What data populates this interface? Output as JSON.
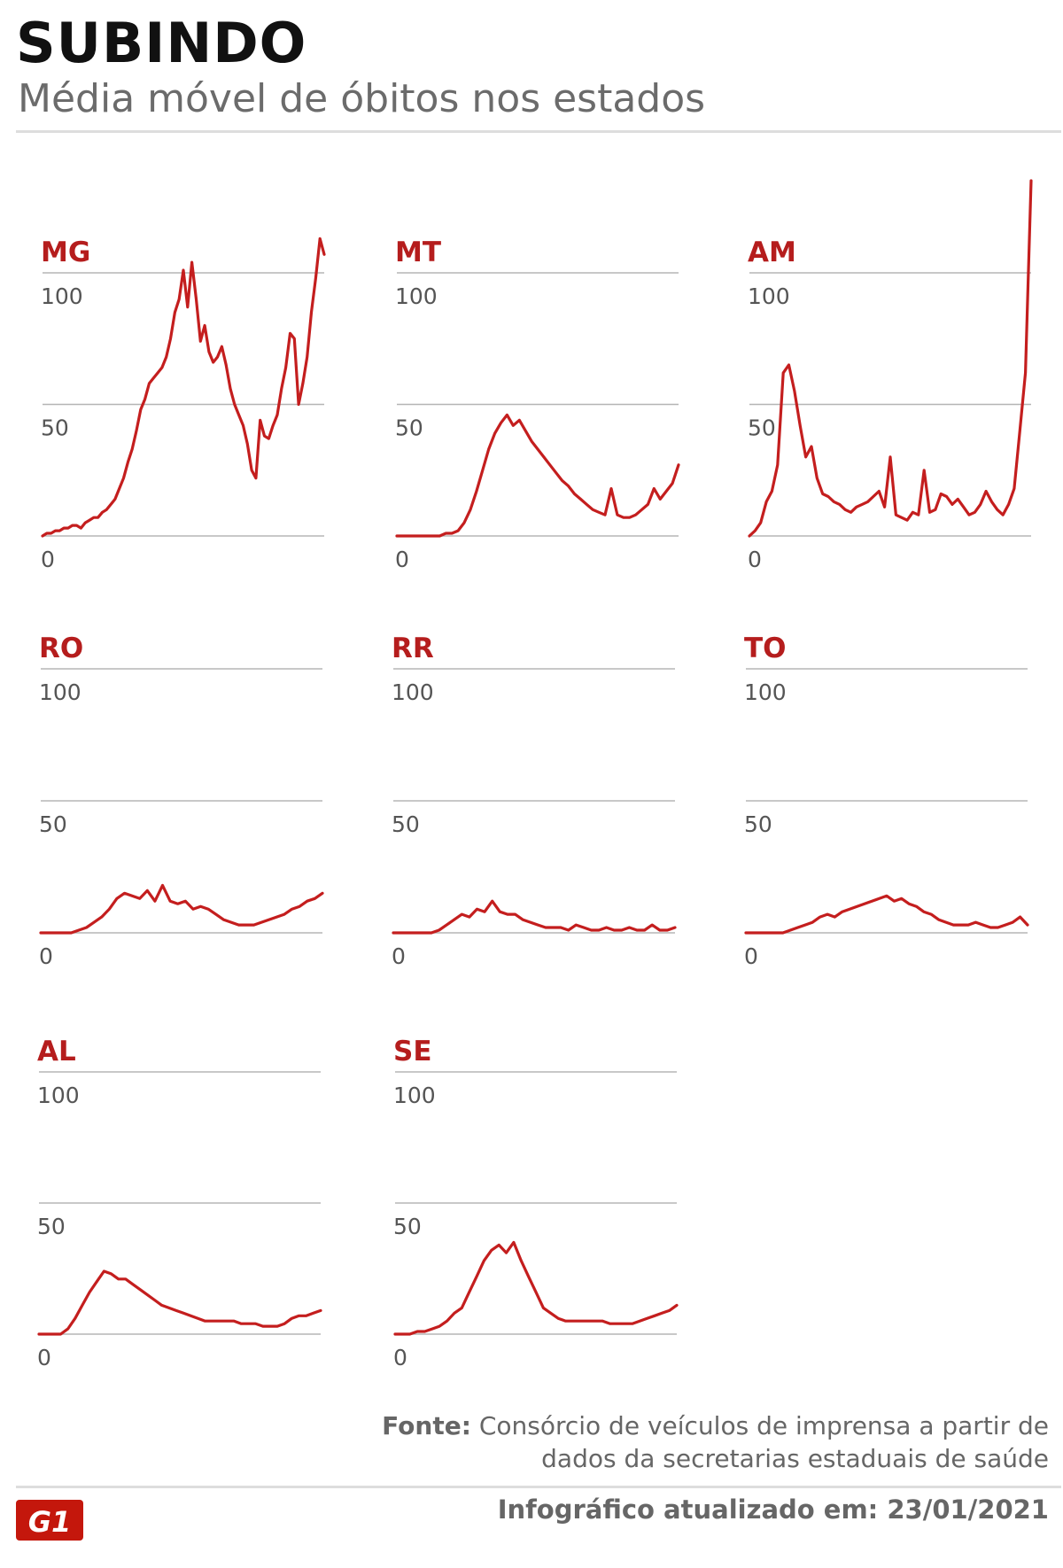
{
  "header": {
    "title": "SUBINDO",
    "subtitle": "Média móvel de óbitos nos estados"
  },
  "footer": {
    "source_label": "Fonte:",
    "source_text": "Consórcio de veículos de imprensa a partir de dados da secretarias estaduais de saúde",
    "updated": "Infográfico atualizado em: 23/01/2021",
    "logo_text": "G1"
  },
  "colors": {
    "series": "#c41e1e",
    "label": "#b51d1d",
    "grid": "#b5b5b5"
  },
  "chart_data": [
    {
      "type": "line",
      "title": "MG",
      "yticks": [
        0,
        50,
        100
      ],
      "ylim": [
        0,
        100
      ],
      "values": [
        0,
        1,
        1,
        2,
        2,
        3,
        3,
        4,
        4,
        3,
        5,
        6,
        7,
        7,
        9,
        10,
        12,
        14,
        18,
        22,
        28,
        33,
        40,
        48,
        52,
        58,
        60,
        62,
        64,
        68,
        75,
        85,
        90,
        101,
        87,
        104,
        90,
        74,
        80,
        70,
        66,
        68,
        72,
        65,
        56,
        50,
        46,
        42,
        35,
        25,
        22,
        44,
        38,
        37,
        42,
        46,
        56,
        64,
        77,
        75,
        50,
        58,
        68,
        85,
        98,
        113,
        107
      ],
      "xlabel": "",
      "ylabel": "",
      "grid": true
    },
    {
      "type": "line",
      "title": "MT",
      "yticks": [
        0,
        50,
        100
      ],
      "ylim": [
        0,
        100
      ],
      "values": [
        0,
        0,
        0,
        0,
        0,
        0,
        0,
        0,
        1,
        1,
        2,
        5,
        10,
        17,
        25,
        33,
        39,
        43,
        46,
        42,
        44,
        40,
        36,
        33,
        30,
        27,
        24,
        21,
        19,
        16,
        14,
        12,
        10,
        9,
        8,
        18,
        8,
        7,
        7,
        8,
        10,
        12,
        18,
        14,
        17,
        20,
        27
      ],
      "xlabel": "",
      "ylabel": "",
      "grid": true
    },
    {
      "type": "line",
      "title": "AM",
      "yticks": [
        0,
        50,
        100
      ],
      "ylim": [
        0,
        100
      ],
      "values": [
        0,
        2,
        5,
        13,
        17,
        27,
        62,
        65,
        55,
        42,
        30,
        34,
        22,
        16,
        15,
        13,
        12,
        10,
        9,
        11,
        12,
        13,
        15,
        17,
        11,
        30,
        8,
        7,
        6,
        9,
        8,
        25,
        9,
        10,
        16,
        15,
        12,
        14,
        11,
        8,
        9,
        12,
        17,
        13,
        10,
        8,
        12,
        18,
        40,
        62,
        135
      ],
      "xlabel": "",
      "ylabel": "",
      "grid": true
    },
    {
      "type": "line",
      "title": "RO",
      "yticks": [
        0,
        50,
        100
      ],
      "ylim": [
        0,
        100
      ],
      "values": [
        0,
        0,
        0,
        0,
        0,
        1,
        2,
        4,
        6,
        9,
        13,
        15,
        14,
        13,
        16,
        12,
        18,
        12,
        11,
        12,
        9,
        10,
        9,
        7,
        5,
        4,
        3,
        3,
        3,
        4,
        5,
        6,
        7,
        9,
        10,
        12,
        13,
        15
      ],
      "xlabel": "",
      "ylabel": "",
      "grid": true
    },
    {
      "type": "line",
      "title": "RR",
      "yticks": [
        0,
        50,
        100
      ],
      "ylim": [
        0,
        100
      ],
      "values": [
        0,
        0,
        0,
        0,
        0,
        0,
        1,
        3,
        5,
        7,
        6,
        9,
        8,
        12,
        8,
        7,
        7,
        5,
        4,
        3,
        2,
        2,
        2,
        1,
        3,
        2,
        1,
        1,
        2,
        1,
        1,
        2,
        1,
        1,
        3,
        1,
        1,
        2
      ],
      "xlabel": "",
      "ylabel": "",
      "grid": true
    },
    {
      "type": "line",
      "title": "TO",
      "yticks": [
        0,
        50,
        100
      ],
      "ylim": [
        0,
        100
      ],
      "values": [
        0,
        0,
        0,
        0,
        0,
        0,
        1,
        2,
        3,
        4,
        6,
        7,
        6,
        8,
        9,
        10,
        11,
        12,
        13,
        14,
        12,
        13,
        11,
        10,
        8,
        7,
        5,
        4,
        3,
        3,
        3,
        4,
        3,
        2,
        2,
        3,
        4,
        6,
        3
      ],
      "xlabel": "",
      "ylabel": "",
      "grid": true
    },
    {
      "type": "line",
      "title": "AL",
      "yticks": [
        0,
        50,
        100
      ],
      "ylim": [
        0,
        100
      ],
      "values": [
        0,
        0,
        0,
        0,
        2,
        6,
        11,
        16,
        20,
        24,
        23,
        21,
        21,
        19,
        17,
        15,
        13,
        11,
        10,
        9,
        8,
        7,
        6,
        5,
        5,
        5,
        5,
        5,
        4,
        4,
        4,
        3,
        3,
        3,
        4,
        6,
        7,
        7,
        8,
        9
      ],
      "xlabel": "",
      "ylabel": "",
      "grid": true
    },
    {
      "type": "line",
      "title": "SE",
      "yticks": [
        0,
        50,
        100
      ],
      "ylim": [
        0,
        100
      ],
      "values": [
        0,
        0,
        0,
        1,
        1,
        2,
        3,
        5,
        8,
        10,
        16,
        22,
        28,
        32,
        34,
        31,
        35,
        28,
        22,
        16,
        10,
        8,
        6,
        5,
        5,
        5,
        5,
        5,
        5,
        4,
        4,
        4,
        4,
        5,
        6,
        7,
        8,
        9,
        11
      ],
      "xlabel": "",
      "ylabel": "",
      "grid": true
    }
  ]
}
